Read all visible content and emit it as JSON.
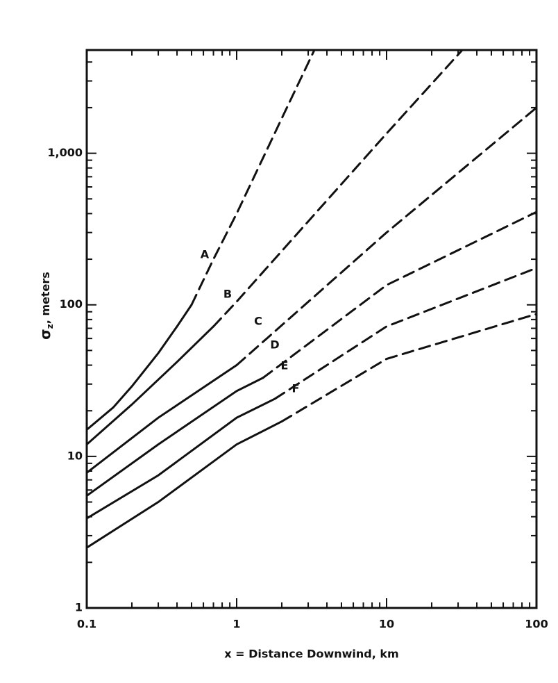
{
  "chart_data": {
    "type": "line",
    "xlabel": "x = Distance Downwind, km",
    "ylabel": {
      "symbol": "σ",
      "subscript": "z",
      "text": ", meters"
    },
    "xscale": "log",
    "yscale": "log",
    "xlim": [
      0.1,
      100
    ],
    "ylim": [
      1,
      4800
    ],
    "xticks": [
      0.1,
      1,
      10,
      100
    ],
    "yticks": [
      1,
      10,
      100,
      {
        "value": 1000,
        "label": "1,000"
      }
    ],
    "color": "#111111",
    "series": [
      {
        "name": "A",
        "x": [
          0.1,
          0.15,
          0.2,
          0.3,
          0.4,
          0.5
        ],
        "values": [
          15,
          21,
          29,
          48,
          72,
          100
        ],
        "dashed_x": [
          0.5,
          0.7,
          1,
          2,
          3.3
        ],
        "dashed_values": [
          100,
          200,
          400,
          1700,
          4800
        ]
      },
      {
        "name": "B",
        "x": [
          0.1,
          0.2,
          0.4,
          0.7
        ],
        "values": [
          12,
          22,
          42,
          72
        ],
        "dashed_x": [
          0.7,
          1,
          10,
          32
        ],
        "dashed_values": [
          72,
          105,
          1350,
          4800
        ]
      },
      {
        "name": "C",
        "x": [
          0.1,
          0.3,
          1
        ],
        "values": [
          7.8,
          18,
          40
        ],
        "dashed_x": [
          1,
          10,
          100
        ],
        "dashed_values": [
          40,
          300,
          2000
        ]
      },
      {
        "name": "D",
        "x": [
          0.1,
          0.3,
          1,
          1.5
        ],
        "values": [
          5.5,
          12,
          27,
          33
        ],
        "dashed_x": [
          1.5,
          10,
          100
        ],
        "dashed_values": [
          33,
          135,
          410
        ]
      },
      {
        "name": "E",
        "x": [
          0.1,
          0.3,
          1,
          1.8
        ],
        "values": [
          3.9,
          7.5,
          18,
          24
        ],
        "dashed_x": [
          1.8,
          10,
          100
        ],
        "dashed_values": [
          24,
          72,
          175
        ]
      },
      {
        "name": "F",
        "x": [
          0.1,
          0.3,
          1,
          2
        ],
        "values": [
          2.5,
          5,
          12,
          17
        ],
        "dashed_x": [
          2,
          10,
          100
        ],
        "dashed_values": [
          17,
          44,
          87
        ]
      }
    ]
  }
}
